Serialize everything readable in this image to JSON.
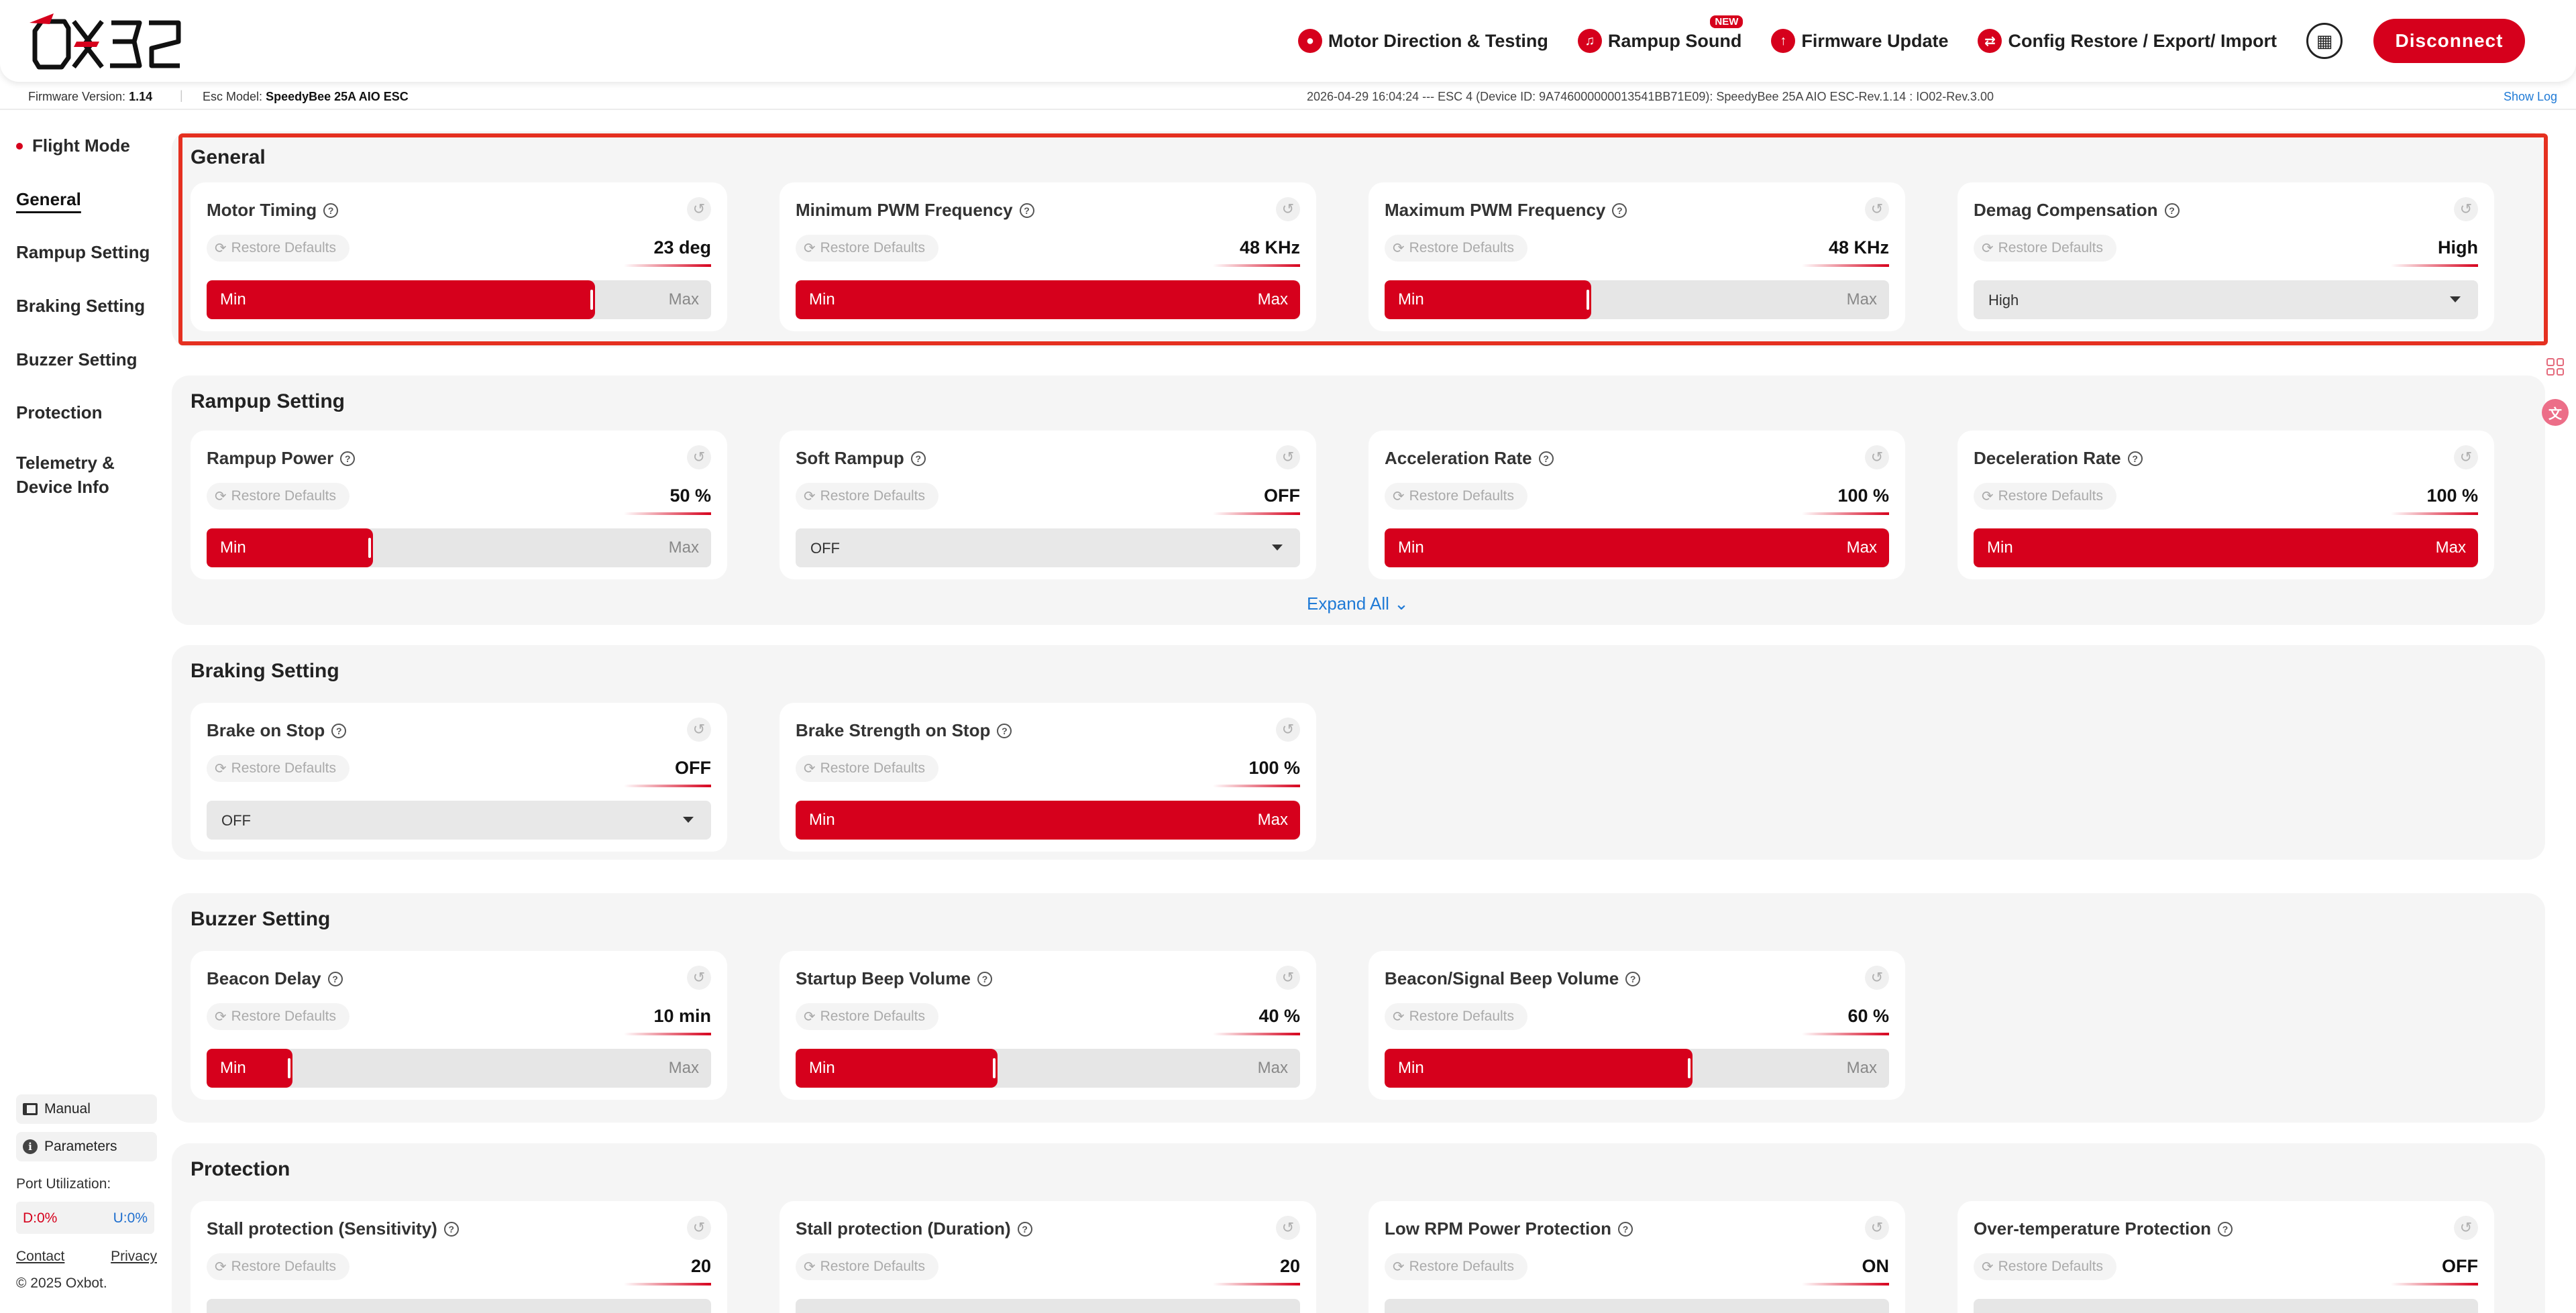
{
  "header": {
    "logo_text": "OX32",
    "nav": [
      {
        "label": "Motor Direction & Testing",
        "icon": "motor-drop-icon"
      },
      {
        "label": "Rampup Sound",
        "icon": "music-note-icon",
        "badge": "NEW"
      },
      {
        "label": "Firmware Update",
        "icon": "upload-arrow-icon"
      },
      {
        "label": "Config Restore / Export/ Import",
        "icon": "swap-arrows-icon"
      }
    ],
    "disconnect_label": "Disconnect",
    "accent_color": "#d6001c"
  },
  "infobar": {
    "firmware_label": "Firmware Version:",
    "firmware_value": "1.14",
    "separator": "|",
    "esc_label": "Esc Model:",
    "esc_value": "SpeedyBee 25A AIO ESC",
    "log_text": "2026-04-29 16:04:24 --- ESC 4 (Device ID: 9A746000000013541BB71E09): SpeedyBee 25A AIO ESC-Rev.1.14 : IO02-Rev.3.00",
    "show_log": "Show Log"
  },
  "sidebar": {
    "items": [
      {
        "label": "Flight Mode"
      },
      {
        "label": "General"
      },
      {
        "label": "Rampup Setting"
      },
      {
        "label": "Braking Setting"
      },
      {
        "label": "Buzzer Setting"
      },
      {
        "label": "Protection"
      },
      {
        "label": "Telemetry &\nDevice Info"
      }
    ],
    "manual_label": "Manual",
    "parameters_label": "Parameters",
    "port_label": "Port Utilization:",
    "port_d": "D:0%",
    "port_u": "U:0%",
    "contact": "Contact",
    "privacy": "Privacy",
    "copyright": "© 2025 Oxbot."
  },
  "common": {
    "restore_defaults": "Restore Defaults",
    "min": "Min",
    "max": "Max",
    "expand_all": "Expand All"
  },
  "sections": {
    "general": {
      "title": "General",
      "cards": [
        {
          "title": "Motor Timing",
          "value": "23 deg",
          "level_percent": 77
        },
        {
          "title": "Minimum PWM Frequency",
          "value": "48 KHz",
          "level_percent": 100
        },
        {
          "title": "Maximum PWM Frequency",
          "value": "48 KHz",
          "level_percent": 41
        },
        {
          "title": "Demag Compensation",
          "value": "High",
          "select_value": "High"
        }
      ]
    },
    "rampup": {
      "title": "Rampup Setting",
      "cards": [
        {
          "title": "Rampup Power",
          "value": "50 %",
          "level_percent": 33
        },
        {
          "title": "Soft Rampup",
          "value": "OFF",
          "select_value": "OFF"
        },
        {
          "title": "Acceleration Rate",
          "value": "100 %",
          "level_percent": 100
        },
        {
          "title": "Deceleration Rate",
          "value": "100 %",
          "level_percent": 100
        }
      ]
    },
    "braking": {
      "title": "Braking Setting",
      "cards": [
        {
          "title": "Brake on Stop",
          "value": "OFF",
          "select_value": "OFF"
        },
        {
          "title": "Brake Strength on Stop",
          "value": "100 %",
          "level_percent": 100
        }
      ]
    },
    "buzzer": {
      "title": "Buzzer Setting",
      "cards": [
        {
          "title": "Beacon Delay",
          "value": "10 min",
          "level_percent": 17
        },
        {
          "title": "Startup Beep Volume",
          "value": "40 %",
          "level_percent": 40
        },
        {
          "title": "Beacon/Signal Beep Volume",
          "value": "60 %",
          "level_percent": 61
        }
      ]
    },
    "protection": {
      "title": "Protection",
      "cards": [
        {
          "title": "Stall protection (Sensitivity)",
          "value": "20"
        },
        {
          "title": "Stall protection (Duration)",
          "value": "20"
        },
        {
          "title": "Low RPM Power Protection",
          "value": "ON"
        },
        {
          "title": "Over-temperature Protection",
          "value": "OFF"
        }
      ]
    }
  }
}
